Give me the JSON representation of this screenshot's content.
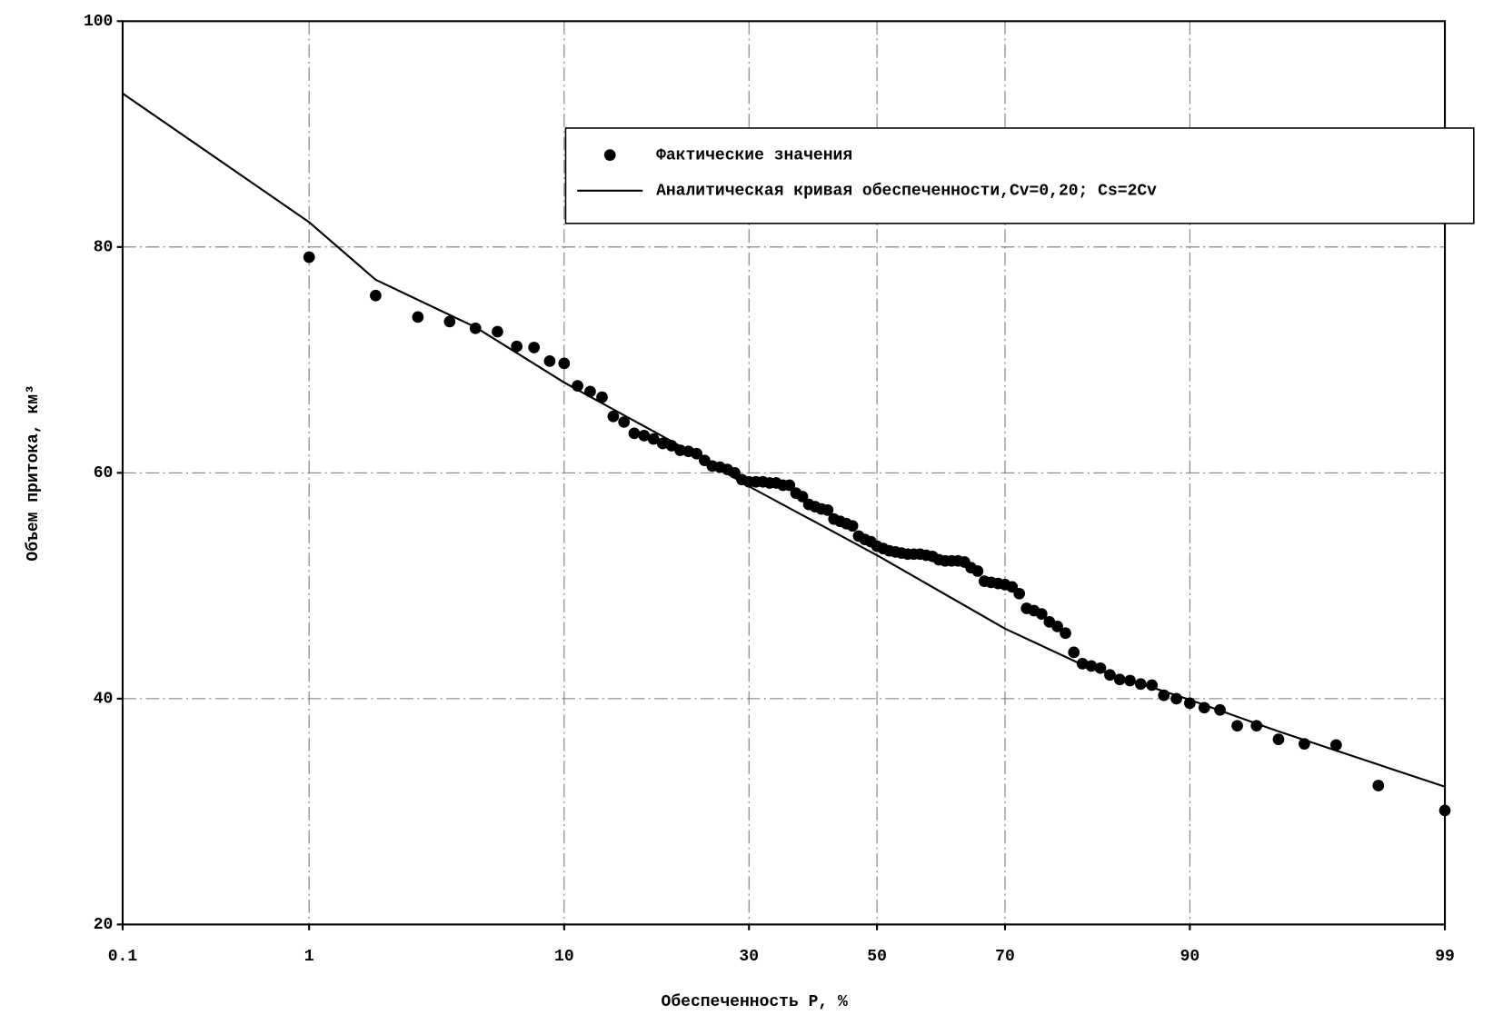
{
  "chart_data": {
    "type": "scatter-line",
    "xlabel": "Обеспеченность P, %",
    "ylabel": "Объем притока, км³",
    "xscale": "probability",
    "xlim": [
      0.1,
      99
    ],
    "xticks": [
      0.1,
      1,
      10,
      30,
      50,
      70,
      90,
      99
    ],
    "ylim": [
      20,
      100
    ],
    "yticks": [
      20,
      40,
      60,
      80,
      100
    ],
    "grid": true,
    "legend": "top-right",
    "series": [
      {
        "name": "Фактические значения",
        "kind": "points",
        "color": "#000000",
        "x": [
          1,
          2,
          3,
          4,
          5,
          6,
          7,
          8,
          9,
          10,
          11,
          12,
          13,
          14,
          15,
          16,
          17,
          18,
          19,
          20,
          21,
          22,
          23,
          24,
          25,
          26,
          27,
          28,
          29,
          30,
          31,
          32,
          33,
          34,
          35,
          36,
          37,
          38,
          39,
          40,
          41,
          42,
          43,
          44,
          45,
          46,
          47,
          48,
          49,
          50,
          51,
          52,
          53,
          54,
          55,
          56,
          57,
          58,
          59,
          60,
          61,
          62,
          63,
          64,
          65,
          66,
          67,
          68,
          69,
          70,
          71,
          72,
          73,
          74,
          75,
          76,
          77,
          78,
          79,
          80,
          81,
          82,
          83,
          84,
          85,
          86,
          87,
          88,
          89,
          90,
          91,
          92,
          93,
          94,
          95,
          96,
          97,
          98,
          99
        ],
        "values": [
          79.1,
          75.7,
          73.8,
          73.4,
          72.8,
          72.5,
          71.2,
          71.1,
          69.9,
          69.7,
          67.7,
          67.2,
          66.7,
          65.0,
          64.5,
          63.5,
          63.3,
          63.0,
          62.6,
          62.4,
          62.0,
          61.9,
          61.7,
          61.1,
          60.6,
          60.5,
          60.3,
          60.0,
          59.4,
          59.2,
          59.2,
          59.2,
          59.1,
          59.1,
          58.9,
          58.9,
          58.2,
          57.9,
          57.2,
          57.0,
          56.8,
          56.7,
          55.9,
          55.7,
          55.5,
          55.3,
          54.4,
          54.1,
          53.9,
          53.5,
          53.3,
          53.1,
          53.0,
          52.9,
          52.8,
          52.8,
          52.8,
          52.7,
          52.6,
          52.3,
          52.2,
          52.2,
          52.2,
          52.1,
          51.6,
          51.3,
          50.4,
          50.3,
          50.2,
          50.1,
          49.9,
          49.3,
          48.0,
          47.8,
          47.5,
          46.8,
          46.4,
          45.8,
          44.1,
          43.1,
          42.9,
          42.7,
          42.1,
          41.7,
          41.6,
          41.3,
          41.2,
          40.3,
          40.0,
          39.6,
          39.2,
          39.0,
          37.6,
          37.6,
          36.4,
          36.0,
          35.9,
          32.3,
          30.1
        ]
      },
      {
        "name": "Аналитическая кривая обеспеченности,Cv=0,20; Cs=2Cv",
        "kind": "line",
        "color": "#000000",
        "x": [
          0.1,
          1,
          2,
          5,
          10,
          20,
          30,
          50,
          70,
          80,
          90,
          95,
          99
        ],
        "values": [
          93.6,
          82.2,
          77.1,
          72.9,
          68.0,
          62.8,
          58.8,
          52.7,
          46.2,
          43.0,
          39.9,
          37.1,
          32.2
        ]
      }
    ]
  }
}
